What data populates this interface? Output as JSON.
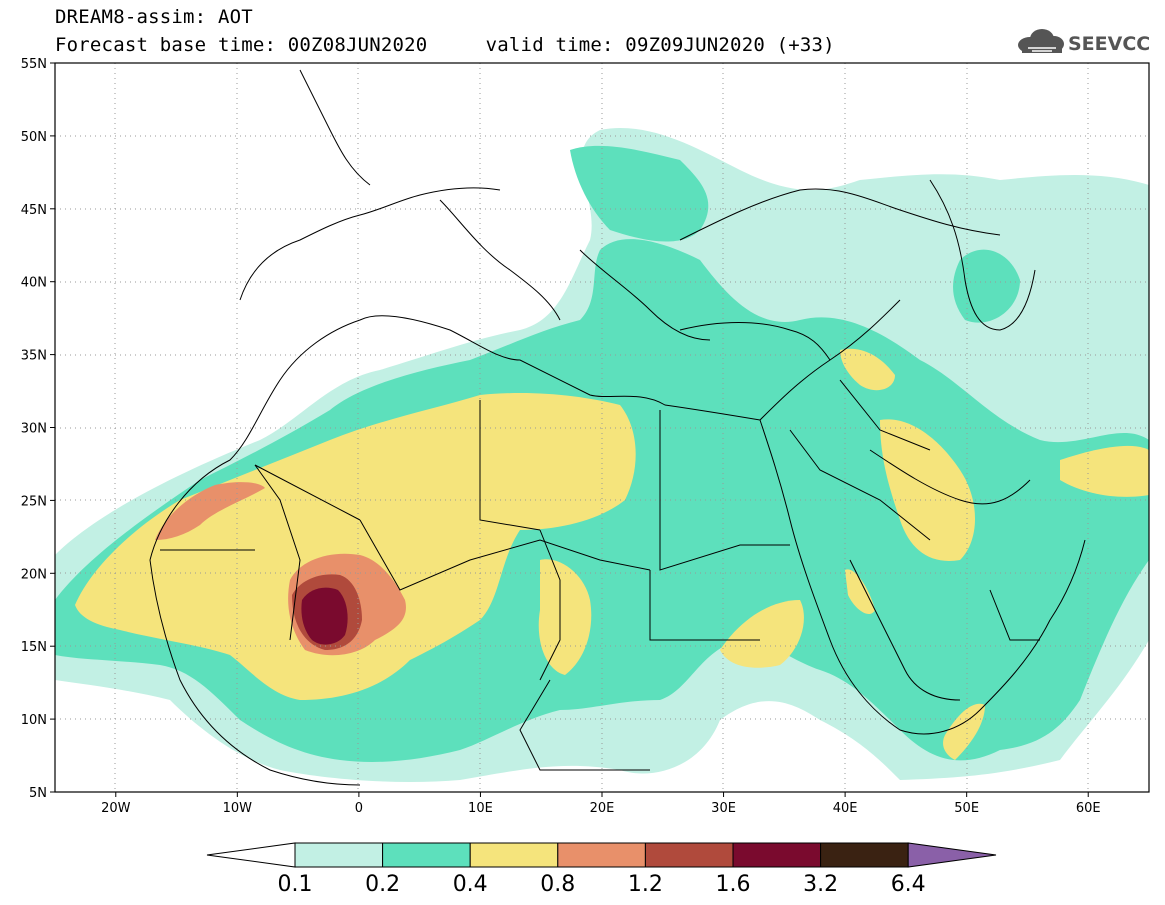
{
  "header": {
    "line1": "DREAM8-assim: AOT",
    "line2": "Forecast base time: 00Z08JUN2020     valid time: 09Z09JUN2020 (+33)",
    "logo_text": "SEEVCCC"
  },
  "map": {
    "lat_labels": [
      "55N",
      "50N",
      "45N",
      "40N",
      "35N",
      "30N",
      "25N",
      "20N",
      "15N",
      "10N",
      "5N"
    ],
    "lon_labels": [
      "20W",
      "10W",
      "0",
      "10E",
      "20E",
      "30E",
      "40E",
      "50E",
      "60E"
    ],
    "lat_values": [
      55,
      50,
      45,
      40,
      35,
      30,
      25,
      20,
      15,
      10,
      5
    ],
    "lon_values": [
      -20,
      -10,
      0,
      10,
      20,
      30,
      40,
      50,
      60
    ],
    "lon_range": [
      -25,
      65
    ],
    "lat_range": [
      5,
      55
    ]
  },
  "colorbar": {
    "labels": [
      "0.1",
      "0.2",
      "0.4",
      "0.8",
      "1.2",
      "1.6",
      "3.2",
      "6.4"
    ],
    "colors": [
      "#ffffff",
      "#c2f0e4",
      "#5de0bc",
      "#f5e47c",
      "#e8906a",
      "#b04a3c",
      "#7a0a2e",
      "#3a2212",
      "#8a60a8"
    ]
  },
  "colors": {
    "level1": "#c2f0e4",
    "level2": "#5de0bc",
    "level3": "#f5e47c",
    "level4": "#e8906a",
    "level5": "#b04a3c",
    "level6": "#7a0a2e"
  }
}
